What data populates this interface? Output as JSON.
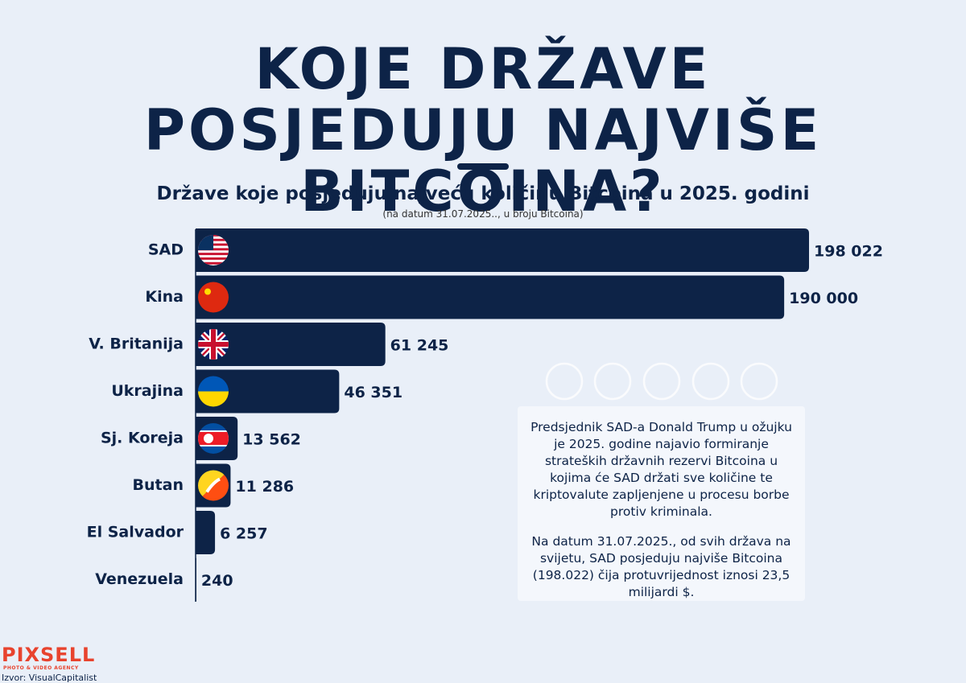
{
  "chart_data": {
    "type": "bar",
    "orientation": "horizontal",
    "title": "KOJE DRŽAVE POSJEDUJU NAJVIŠE BITCOINA?",
    "subtitle": "Države koje posjeduju najveću količinu Bitcoina u 2025. godini",
    "note": "(na datum 31.07.2025.., u broju Bitcoina)",
    "categories": [
      "SAD",
      "Kina",
      "V. Britanija",
      "Ukrajina",
      "Sj. Koreja",
      "Butan",
      "El Salvador",
      "Venezuela"
    ],
    "values": [
      198022,
      190000,
      61245,
      46351,
      13562,
      11286,
      6257,
      240
    ],
    "value_labels": [
      "198 022",
      "190 000",
      "61 245",
      "46 351",
      "13 562",
      "11 286",
      "6 257",
      "240"
    ],
    "color": "#0d2347",
    "annotations": [
      "Predsjednik SAD-a Donald Trump u ožujku je 2025. godine najavio formiranje strateških državnih rezervi Bitcoina u kojima će SAD držati sve količine te kriptovalute zapljenjene u procesu borbe protiv kriminala.",
      "Na datum 31.07.2025., od svih država na svijetu, SAD posjeduju najviše Bitcoina (198.022) čija protuvrijednost iznosi 23,5 milijardi $."
    ]
  },
  "logo": {
    "name": "PIXSELL",
    "tagline": "PHOTO & VIDEO AGENCY"
  },
  "source": "Izvor: VisualCapitalist"
}
